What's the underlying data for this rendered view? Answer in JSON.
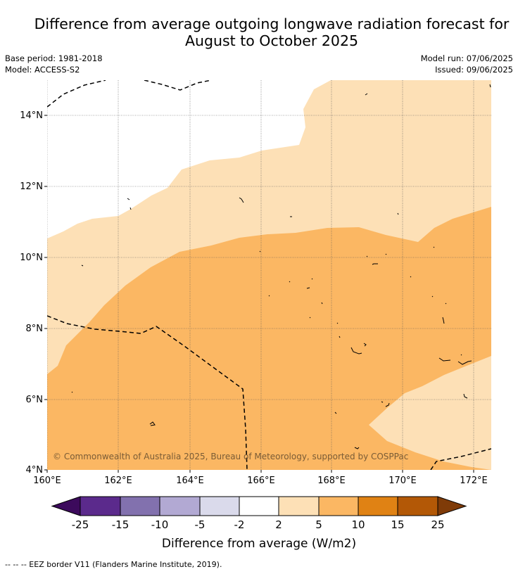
{
  "title_line1": "Difference from average outgoing longwave radiation forecast for",
  "title_line2": "August to October 2025",
  "meta": {
    "base_period": "Base period: 1981-2018",
    "model": "Model: ACCESS-S2",
    "model_run": "Model run: 07/06/2025",
    "issued": "Issued: 09/06/2025"
  },
  "map": {
    "lon_ticks": [
      "160°E",
      "162°E",
      "164°E",
      "166°E",
      "168°E",
      "170°E",
      "172°E"
    ],
    "lat_ticks": [
      "4°N",
      "6°N",
      "8°N",
      "10°N",
      "12°N",
      "14°N"
    ],
    "copyright": "© Commonwealth of Australia 2025, Bureau of Meteorology, supported by COSPPac",
    "categories": [
      {
        "range": "-2 to 2",
        "color": "#ffffff"
      },
      {
        "range": "2 to 5",
        "color": "#fde0b6"
      },
      {
        "range": "5 to 10",
        "color": "#fbb763"
      }
    ]
  },
  "colorbar": {
    "ticks": [
      "-25",
      "-15",
      "-10",
      "-5",
      "-2",
      "2",
      "5",
      "10",
      "15",
      "25"
    ],
    "colors": [
      "#3c0a5c",
      "#5b2a8c",
      "#8271ae",
      "#b2a9d3",
      "#dadaeb",
      "#ffffff",
      "#fde0b6",
      "#fbb763",
      "#e08214",
      "#b35806",
      "#7f3b08"
    ],
    "label": "Difference from average (W/m2)"
  },
  "footnote": "--  --  -- EEZ border V11 (Flanders Marine Institute, 2019)."
}
